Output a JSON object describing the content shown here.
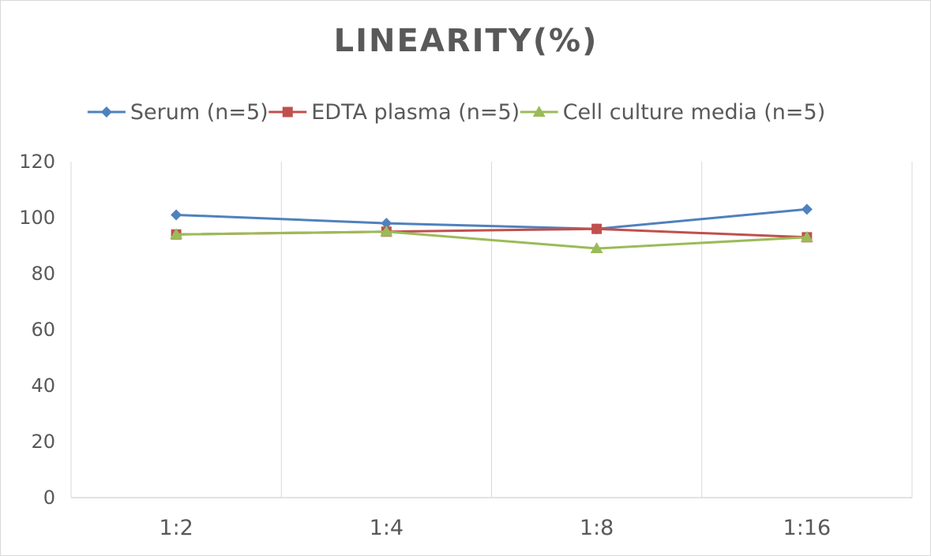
{
  "chart_data": {
    "type": "line",
    "title": "LINEARITY(%)",
    "xlabel": "",
    "ylabel": "",
    "categories": [
      "1:2",
      "1:4",
      "1:8",
      "1:16"
    ],
    "ylim": [
      0,
      120
    ],
    "yticks": [
      0,
      20,
      40,
      60,
      80,
      100,
      120
    ],
    "grid": "vertical",
    "legend_position": "top",
    "series": [
      {
        "name": "Serum (n=5)",
        "values": [
          101,
          98,
          96,
          103
        ],
        "color": "#4f81bd",
        "marker": "diamond"
      },
      {
        "name": "EDTA plasma (n=5)",
        "values": [
          94,
          95,
          96,
          93
        ],
        "color": "#c0504d",
        "marker": "square"
      },
      {
        "name": "Cell culture media (n=5)",
        "values": [
          94,
          95,
          89,
          93
        ],
        "color": "#9bbb59",
        "marker": "triangle"
      }
    ]
  }
}
